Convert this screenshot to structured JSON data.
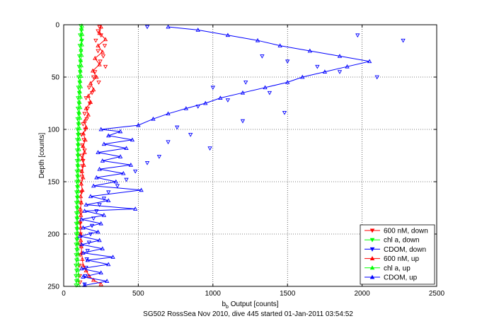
{
  "chart_data": {
    "type": "scatter",
    "title": "",
    "xlabel_main": "b",
    "xlabel_sub": "b",
    "xlabel_rest": " Output [counts]",
    "ylabel": "Depth [counts]",
    "caption": "SG502 RossSea Nov 2010, dive 445 started 01-Jan-2011 03:54:52",
    "xlim": [
      0,
      2500
    ],
    "ylim": [
      0,
      250
    ],
    "y_reversed": true,
    "grid": true,
    "legend_position": "bottom-right",
    "x_ticks": [
      0,
      500,
      1000,
      1500,
      2000,
      2500
    ],
    "y_ticks": [
      0,
      50,
      100,
      150,
      200,
      250
    ],
    "colors": {
      "red": "#ff0000",
      "green": "#00ff00",
      "blue": "#0000ff"
    },
    "series": [
      {
        "name": "600 nM, down",
        "color": "#ff0000",
        "marker": "triangle-down",
        "line": false,
        "points": [
          [
            240,
            2
          ],
          [
            230,
            6
          ],
          [
            250,
            10
          ],
          [
            215,
            15
          ],
          [
            275,
            20
          ],
          [
            230,
            25
          ],
          [
            265,
            30
          ],
          [
            245,
            35
          ],
          [
            280,
            40
          ],
          [
            210,
            45
          ],
          [
            200,
            50
          ],
          [
            235,
            55
          ],
          [
            170,
            60
          ],
          [
            190,
            65
          ],
          [
            150,
            70
          ],
          [
            175,
            75
          ],
          [
            160,
            80
          ],
          [
            140,
            85
          ],
          [
            155,
            90
          ],
          [
            130,
            95
          ],
          [
            145,
            100
          ],
          [
            120,
            105
          ],
          [
            135,
            110
          ],
          [
            125,
            115
          ],
          [
            140,
            120
          ],
          [
            120,
            125
          ],
          [
            130,
            130
          ],
          [
            125,
            135
          ],
          [
            118,
            140
          ],
          [
            122,
            145
          ],
          [
            115,
            150
          ],
          [
            120,
            160
          ],
          [
            112,
            170
          ],
          [
            115,
            180
          ],
          [
            110,
            190
          ],
          [
            112,
            200
          ],
          [
            108,
            210
          ],
          [
            110,
            220
          ],
          [
            106,
            230
          ],
          [
            108,
            240
          ],
          [
            110,
            246
          ]
        ]
      },
      {
        "name": "chl a, down",
        "color": "#00ff00",
        "marker": "triangle-down",
        "line": true,
        "points": [
          [
            115,
            1
          ],
          [
            118,
            5
          ],
          [
            110,
            10
          ],
          [
            122,
            15
          ],
          [
            108,
            20
          ],
          [
            116,
            25
          ],
          [
            105,
            30
          ],
          [
            112,
            35
          ],
          [
            103,
            40
          ],
          [
            110,
            45
          ],
          [
            100,
            50
          ],
          [
            107,
            55
          ],
          [
            98,
            60
          ],
          [
            104,
            65
          ],
          [
            96,
            70
          ],
          [
            102,
            75
          ],
          [
            95,
            80
          ],
          [
            100,
            85
          ],
          [
            93,
            90
          ],
          [
            98,
            95
          ],
          [
            92,
            100
          ],
          [
            96,
            105
          ],
          [
            91,
            110
          ],
          [
            95,
            115
          ],
          [
            90,
            120
          ],
          [
            94,
            125
          ],
          [
            89,
            130
          ],
          [
            93,
            135
          ],
          [
            88,
            140
          ],
          [
            92,
            145
          ],
          [
            87,
            150
          ],
          [
            91,
            155
          ],
          [
            86,
            160
          ],
          [
            90,
            165
          ],
          [
            85,
            170
          ],
          [
            89,
            175
          ],
          [
            85,
            180
          ],
          [
            88,
            185
          ],
          [
            84,
            190
          ],
          [
            88,
            195
          ],
          [
            84,
            200
          ],
          [
            87,
            205
          ],
          [
            83,
            210
          ],
          [
            87,
            215
          ],
          [
            83,
            220
          ],
          [
            86,
            225
          ],
          [
            82,
            230
          ],
          [
            86,
            235
          ],
          [
            82,
            240
          ],
          [
            85,
            245
          ],
          [
            83,
            249
          ]
        ]
      },
      {
        "name": "CDOM, down",
        "color": "#0000ff",
        "marker": "triangle-down",
        "line": false,
        "points": [
          [
            560,
            2
          ],
          [
            1970,
            10
          ],
          [
            2275,
            15
          ],
          [
            1330,
            30
          ],
          [
            1500,
            35
          ],
          [
            1700,
            40
          ],
          [
            1850,
            45
          ],
          [
            2100,
            50
          ],
          [
            1220,
            55
          ],
          [
            1000,
            60
          ],
          [
            1380,
            65
          ],
          [
            1100,
            72
          ],
          [
            900,
            78
          ],
          [
            1480,
            84
          ],
          [
            1200,
            92
          ],
          [
            760,
            98
          ],
          [
            850,
            105
          ],
          [
            700,
            112
          ],
          [
            980,
            118
          ],
          [
            640,
            126
          ],
          [
            560,
            132
          ],
          [
            480,
            140
          ],
          [
            420,
            148
          ],
          [
            360,
            154
          ],
          [
            300,
            160
          ],
          [
            270,
            166
          ],
          [
            240,
            172
          ],
          [
            220,
            178
          ],
          [
            200,
            185
          ],
          [
            190,
            192
          ],
          [
            180,
            200
          ],
          [
            170,
            208
          ],
          [
            160,
            216
          ],
          [
            155,
            224
          ],
          [
            150,
            232
          ],
          [
            145,
            240
          ],
          [
            140,
            248
          ]
        ]
      },
      {
        "name": "600 nM, up",
        "color": "#ff0000",
        "marker": "triangle-up",
        "line": true,
        "points": [
          [
            250,
            248
          ],
          [
            200,
            244
          ],
          [
            170,
            240
          ],
          [
            150,
            235
          ],
          [
            130,
            230
          ],
          [
            125,
            224
          ],
          [
            120,
            218
          ],
          [
            118,
            212
          ],
          [
            115,
            206
          ],
          [
            112,
            200
          ],
          [
            114,
            194
          ],
          [
            110,
            188
          ],
          [
            115,
            182
          ],
          [
            112,
            176
          ],
          [
            118,
            170
          ],
          [
            114,
            164
          ],
          [
            125,
            158
          ],
          [
            118,
            152
          ],
          [
            130,
            146
          ],
          [
            122,
            140
          ],
          [
            135,
            134
          ],
          [
            126,
            128
          ],
          [
            140,
            122
          ],
          [
            130,
            116
          ],
          [
            145,
            110
          ],
          [
            132,
            104
          ],
          [
            150,
            98
          ],
          [
            140,
            92
          ],
          [
            165,
            86
          ],
          [
            150,
            80
          ],
          [
            180,
            74
          ],
          [
            165,
            68
          ],
          [
            200,
            62
          ],
          [
            180,
            56
          ],
          [
            220,
            50
          ],
          [
            195,
            44
          ],
          [
            240,
            38
          ],
          [
            210,
            32
          ],
          [
            260,
            26
          ],
          [
            230,
            20
          ],
          [
            280,
            14
          ],
          [
            240,
            8
          ],
          [
            250,
            2
          ]
        ]
      },
      {
        "name": "chl a, up",
        "color": "#00ff00",
        "marker": "triangle-up",
        "line": true,
        "points": [
          [
            100,
            249
          ],
          [
            96,
            244
          ],
          [
            99,
            239
          ],
          [
            95,
            234
          ],
          [
            98,
            229
          ],
          [
            94,
            224
          ],
          [
            97,
            219
          ],
          [
            93,
            214
          ],
          [
            96,
            209
          ],
          [
            92,
            204
          ],
          [
            95,
            199
          ],
          [
            92,
            194
          ],
          [
            95,
            189
          ],
          [
            92,
            184
          ],
          [
            96,
            179
          ],
          [
            93,
            174
          ],
          [
            97,
            169
          ],
          [
            94,
            164
          ],
          [
            98,
            159
          ],
          [
            95,
            154
          ],
          [
            99,
            149
          ],
          [
            96,
            144
          ],
          [
            100,
            139
          ],
          [
            97,
            134
          ],
          [
            101,
            129
          ],
          [
            98,
            124
          ],
          [
            102,
            119
          ],
          [
            99,
            114
          ],
          [
            104,
            109
          ],
          [
            100,
            104
          ],
          [
            106,
            99
          ],
          [
            102,
            94
          ],
          [
            108,
            89
          ],
          [
            104,
            84
          ],
          [
            110,
            79
          ],
          [
            106,
            74
          ],
          [
            112,
            69
          ],
          [
            108,
            64
          ],
          [
            114,
            59
          ],
          [
            110,
            54
          ],
          [
            116,
            49
          ],
          [
            112,
            44
          ],
          [
            118,
            39
          ],
          [
            114,
            34
          ],
          [
            120,
            29
          ],
          [
            116,
            24
          ],
          [
            122,
            19
          ],
          [
            118,
            14
          ],
          [
            124,
            9
          ],
          [
            120,
            4
          ],
          [
            122,
            1
          ]
        ]
      },
      {
        "name": "CDOM, up",
        "color": "#0000ff",
        "marker": "triangle-up",
        "line": true,
        "points": [
          [
            140,
            249
          ],
          [
            290,
            245
          ],
          [
            130,
            241
          ],
          [
            250,
            237
          ],
          [
            120,
            233
          ],
          [
            300,
            229
          ],
          [
            160,
            225
          ],
          [
            330,
            222
          ],
          [
            130,
            218
          ],
          [
            260,
            214
          ],
          [
            120,
            210
          ],
          [
            240,
            206
          ],
          [
            110,
            202
          ],
          [
            230,
            198
          ],
          [
            130,
            194
          ],
          [
            250,
            190
          ],
          [
            120,
            186
          ],
          [
            270,
            182
          ],
          [
            140,
            178
          ],
          [
            480,
            176
          ],
          [
            150,
            172
          ],
          [
            300,
            168
          ],
          [
            180,
            164
          ],
          [
            520,
            158
          ],
          [
            200,
            154
          ],
          [
            350,
            150
          ],
          [
            220,
            146
          ],
          [
            400,
            142
          ],
          [
            240,
            138
          ],
          [
            450,
            134
          ],
          [
            260,
            130
          ],
          [
            380,
            126
          ],
          [
            230,
            122
          ],
          [
            420,
            118
          ],
          [
            270,
            114
          ],
          [
            460,
            110
          ],
          [
            300,
            106
          ],
          [
            380,
            102
          ],
          [
            250,
            100
          ],
          [
            500,
            96
          ],
          [
            600,
            90
          ],
          [
            700,
            85
          ],
          [
            820,
            80
          ],
          [
            950,
            75
          ],
          [
            1050,
            70
          ],
          [
            1200,
            65
          ],
          [
            1350,
            60
          ],
          [
            1500,
            55
          ],
          [
            1600,
            50
          ],
          [
            1750,
            45
          ],
          [
            1900,
            40
          ],
          [
            2050,
            35
          ],
          [
            1850,
            30
          ],
          [
            1650,
            25
          ],
          [
            1450,
            20
          ],
          [
            1300,
            15
          ],
          [
            1100,
            10
          ],
          [
            900,
            5
          ],
          [
            700,
            2
          ]
        ]
      }
    ]
  }
}
